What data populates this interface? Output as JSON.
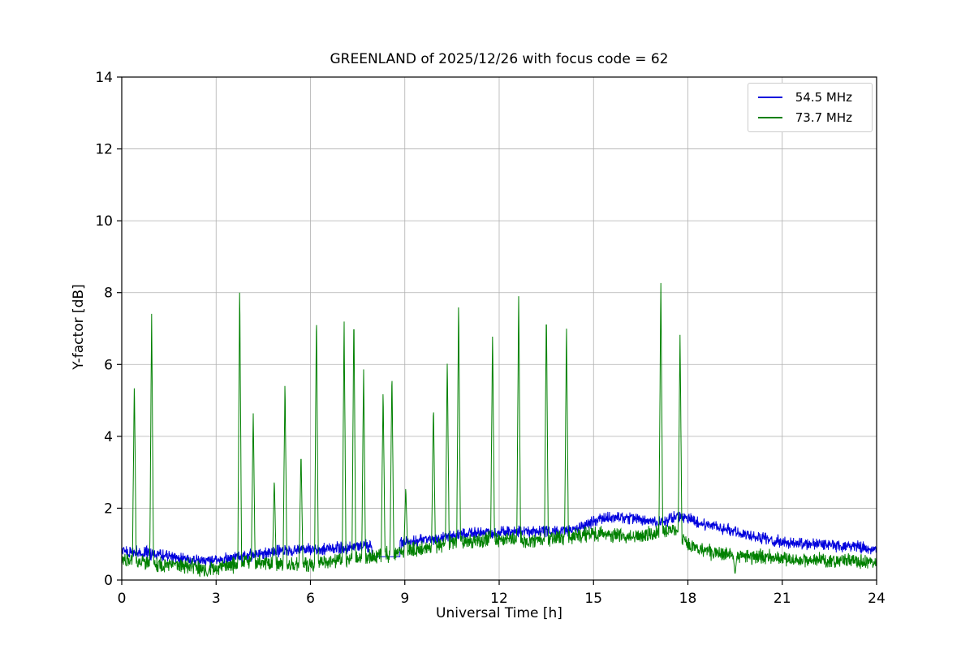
{
  "figure": {
    "background": "#ffffff"
  },
  "chart_data": {
    "type": "line",
    "title": "GREENLAND of 2025/12/26 with focus code = 62",
    "xlabel": "Universal Time [h]",
    "ylabel": "Y-factor [dB]",
    "xlim": [
      0,
      24
    ],
    "ylim": [
      0,
      14
    ],
    "xticks": [
      0,
      3,
      6,
      9,
      12,
      15,
      18,
      21,
      24
    ],
    "yticks": [
      0,
      2,
      4,
      6,
      8,
      10,
      12,
      14
    ],
    "grid": true,
    "grid_color": "#b0b0b0",
    "frame_color": "#000000",
    "legend_position": "upper right",
    "series": [
      {
        "name": "54.5 MHz",
        "color": "#0000dd",
        "noise_amplitude": 0.14,
        "baseline": {
          "x": [
            0,
            0.5,
            1,
            1.5,
            2,
            2.7,
            3.2,
            4,
            5,
            6,
            7,
            8,
            9,
            10,
            11,
            12,
            13,
            14,
            14.5,
            15,
            15.5,
            16,
            16.5,
            17,
            17.3,
            17.6,
            18,
            18.4,
            19,
            19.5,
            20,
            20.5,
            21,
            22,
            23,
            24
          ],
          "y": [
            0.8,
            0.78,
            0.72,
            0.65,
            0.6,
            0.52,
            0.58,
            0.68,
            0.8,
            0.85,
            0.9,
            0.95,
            1.05,
            1.15,
            1.3,
            1.3,
            1.35,
            1.35,
            1.45,
            1.65,
            1.75,
            1.75,
            1.7,
            1.6,
            1.65,
            1.75,
            1.72,
            1.6,
            1.45,
            1.35,
            1.25,
            1.15,
            1.05,
            1.0,
            0.95,
            0.85
          ]
        },
        "flat_segments": [
          {
            "t0": 7.95,
            "t1": 8.85,
            "y": 0.65
          }
        ],
        "spikes": []
      },
      {
        "name": "73.7 MHz",
        "color": "#008000",
        "noise_amplitude": 0.17,
        "baseline": {
          "x": [
            0,
            0.5,
            1,
            2,
            2.7,
            3.5,
            4,
            4.5,
            5,
            6,
            6.5,
            7,
            8,
            9,
            10,
            11,
            12,
            13,
            14,
            15,
            15.5,
            16,
            16.5,
            17,
            17.5,
            18,
            18.5,
            19,
            20,
            21,
            22,
            23,
            24
          ],
          "y": [
            0.55,
            0.5,
            0.45,
            0.4,
            0.3,
            0.42,
            0.5,
            0.45,
            0.42,
            0.45,
            0.5,
            0.55,
            0.65,
            0.8,
            0.95,
            1.1,
            1.15,
            1.1,
            1.15,
            1.3,
            1.25,
            1.2,
            1.25,
            1.3,
            1.4,
            1.0,
            0.8,
            0.72,
            0.65,
            0.6,
            0.55,
            0.55,
            0.5
          ]
        },
        "flat_segments": [],
        "spikes": [
          {
            "t": 0.4,
            "peak": 5.6
          },
          {
            "t": 0.95,
            "peak": 7.5
          },
          {
            "t": 2.72,
            "peak": 0.1
          },
          {
            "t": 3.75,
            "peak": 8.3
          },
          {
            "t": 4.18,
            "peak": 4.75
          },
          {
            "t": 4.85,
            "peak": 2.87
          },
          {
            "t": 5.19,
            "peak": 5.6
          },
          {
            "t": 5.7,
            "peak": 3.6
          },
          {
            "t": 6.19,
            "peak": 7.55
          },
          {
            "t": 7.07,
            "peak": 7.28
          },
          {
            "t": 7.38,
            "peak": 7.5
          },
          {
            "t": 7.69,
            "peak": 5.93
          },
          {
            "t": 8.31,
            "peak": 5.35
          },
          {
            "t": 8.59,
            "peak": 5.87
          },
          {
            "t": 9.03,
            "peak": 2.6
          },
          {
            "t": 9.91,
            "peak": 4.92
          },
          {
            "t": 10.35,
            "peak": 6.22
          },
          {
            "t": 10.71,
            "peak": 7.85
          },
          {
            "t": 11.79,
            "peak": 7.0
          },
          {
            "t": 12.62,
            "peak": 8.08
          },
          {
            "t": 13.5,
            "peak": 7.6
          },
          {
            "t": 14.14,
            "peak": 7.15
          },
          {
            "t": 17.14,
            "peak": 8.45
          },
          {
            "t": 17.75,
            "peak": 6.9
          },
          {
            "t": 19.5,
            "peak": 0.15
          }
        ]
      }
    ]
  }
}
